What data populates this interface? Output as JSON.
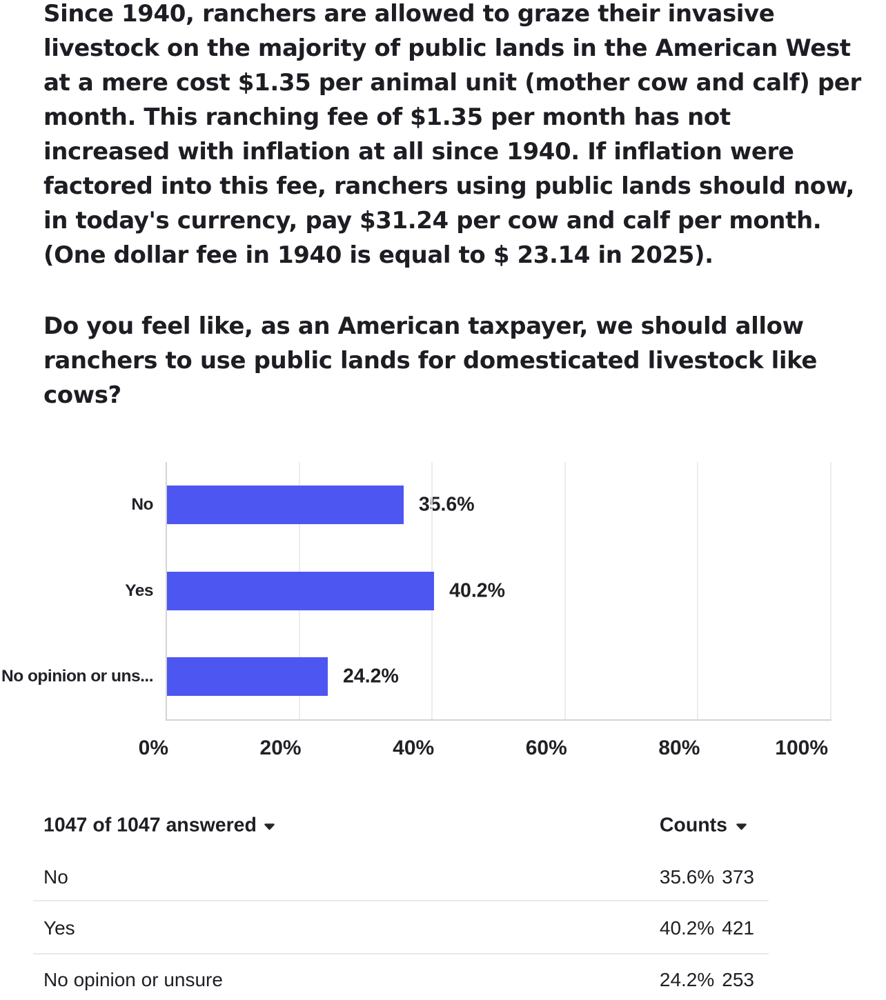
{
  "question": {
    "description": "Since 1940, ranchers are allowed to graze their invasive\nlivestock on the majority of public lands in the American West\nat a mere cost $1.35 per animal unit (mother cow and calf) per\nmonth. This ranching fee of $1.35 per month has not\nincreased with inflation at all since 1940. If inflation were\nfactored into this fee, ranchers using public lands should now,\nin today's currency, pay $31.24 per cow and calf per month.\n(One dollar fee in 1940 is equal to $ 23.14 in 2025).",
    "prompt": "Do you feel like, as an American taxpayer, we should allow\nranchers to use public lands for domesticated livestock like\ncows?"
  },
  "chart_data": {
    "type": "bar",
    "orientation": "horizontal",
    "categories": [
      "No",
      "Yes",
      "No opinion or uns..."
    ],
    "values": [
      35.6,
      40.2,
      24.2
    ],
    "value_labels": [
      "35.6%",
      "40.2%",
      "24.2%"
    ],
    "x_ticks": [
      "0%",
      "20%",
      "40%",
      "60%",
      "80%",
      "100%"
    ],
    "xlim": [
      0,
      100
    ],
    "grid": true,
    "bar_color": "#4d56f0",
    "title": "",
    "xlabel": "",
    "ylabel": ""
  },
  "table": {
    "answered_label": "1047 of 1047 answered",
    "counts_label": "Counts",
    "rows": [
      {
        "label": "No",
        "percent": "35.6%",
        "count": "373"
      },
      {
        "label": "Yes",
        "percent": "40.2%",
        "count": "421"
      },
      {
        "label": "No opinion or unsure",
        "percent": "24.2%",
        "count": "253"
      }
    ]
  }
}
